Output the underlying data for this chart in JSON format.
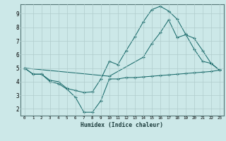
{
  "xlabel": "Humidex (Indice chaleur)",
  "background_color": "#cce8e8",
  "grid_color": "#b0cccc",
  "line_color": "#1a6b6b",
  "xlim": [
    -0.5,
    23.5
  ],
  "ylim": [
    1.5,
    9.7
  ],
  "yticks": [
    2,
    3,
    4,
    5,
    6,
    7,
    8,
    9
  ],
  "xticks": [
    0,
    1,
    2,
    3,
    4,
    5,
    6,
    7,
    8,
    9,
    10,
    11,
    12,
    13,
    14,
    15,
    16,
    17,
    18,
    19,
    20,
    21,
    22,
    23
  ],
  "line1_x": [
    0,
    1,
    2,
    3,
    4,
    5,
    6,
    7,
    8,
    9,
    10,
    11,
    12,
    13,
    14,
    15,
    16,
    17,
    18,
    19,
    20,
    21,
    22,
    23
  ],
  "line1_y": [
    5.0,
    4.55,
    4.55,
    4.0,
    3.85,
    3.45,
    2.85,
    1.75,
    1.75,
    2.6,
    4.2,
    4.2,
    4.3,
    4.3,
    4.35,
    4.4,
    4.45,
    4.5,
    4.55,
    4.6,
    4.65,
    4.7,
    4.75,
    4.85
  ],
  "line2_x": [
    0,
    1,
    2,
    3,
    4,
    5,
    6,
    7,
    8,
    9,
    10,
    11,
    12,
    13,
    14,
    15,
    16,
    17,
    18,
    19,
    20,
    21,
    22,
    23
  ],
  "line2_y": [
    5.0,
    4.55,
    4.55,
    4.1,
    4.0,
    3.5,
    3.35,
    3.2,
    3.25,
    4.2,
    5.5,
    5.25,
    6.3,
    7.3,
    8.4,
    9.3,
    9.55,
    9.2,
    8.6,
    7.5,
    6.4,
    5.5,
    5.35,
    4.85
  ],
  "line3_x": [
    0,
    10,
    14,
    15,
    16,
    17,
    18,
    19,
    20,
    21,
    22,
    23
  ],
  "line3_y": [
    5.0,
    4.4,
    5.8,
    6.8,
    7.6,
    8.55,
    7.25,
    7.45,
    7.2,
    6.3,
    5.35,
    4.85
  ]
}
